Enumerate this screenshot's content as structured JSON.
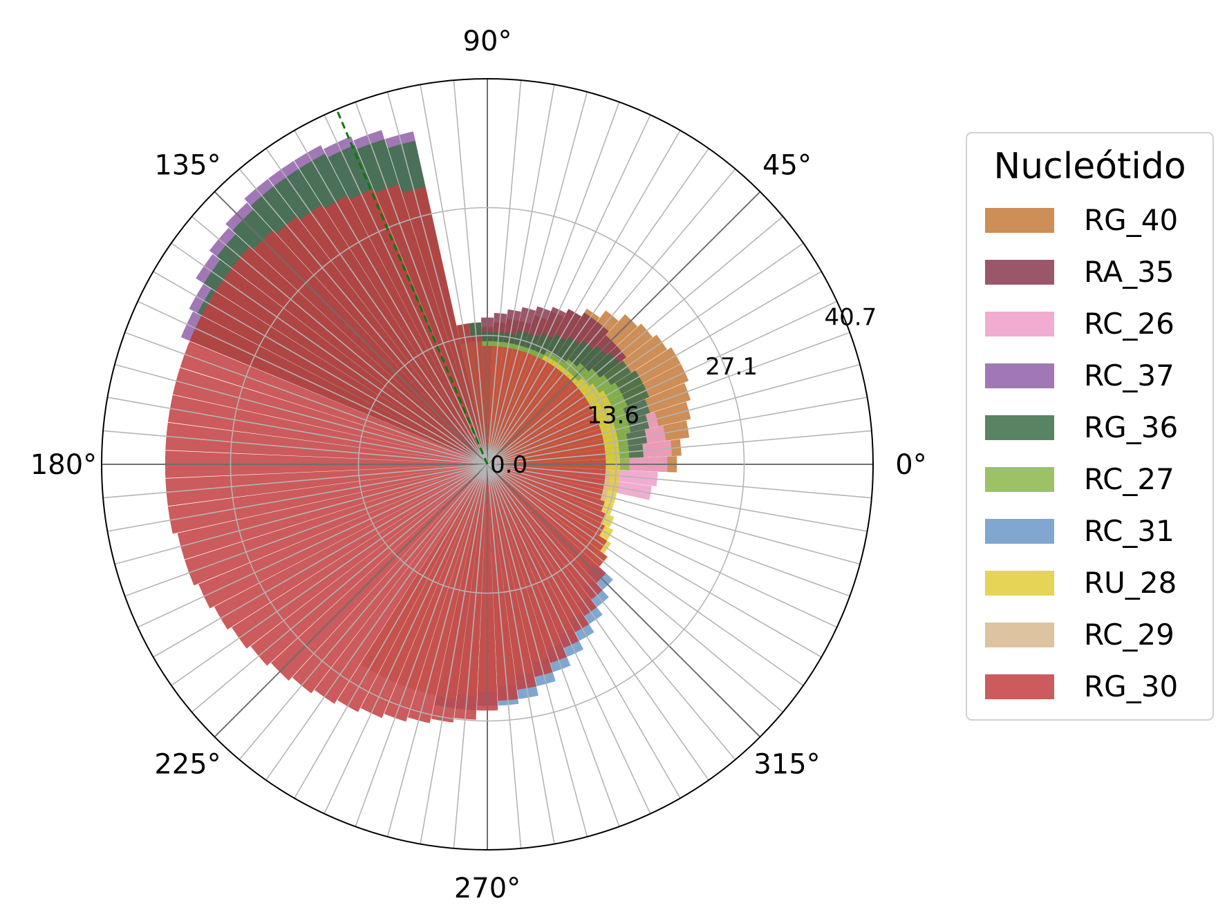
{
  "chart_data": {
    "type": "polar-bar",
    "legend_title": "Nucleótido",
    "legend_placement": "right",
    "angle_ticks": [
      {
        "deg": 0,
        "label": "0°"
      },
      {
        "deg": 45,
        "label": "45°"
      },
      {
        "deg": 90,
        "label": "90°"
      },
      {
        "deg": 135,
        "label": "135°"
      },
      {
        "deg": 180,
        "label": "180°"
      },
      {
        "deg": 225,
        "label": "225°"
      },
      {
        "deg": 270,
        "label": "270°"
      },
      {
        "deg": 315,
        "label": "315°"
      }
    ],
    "radial_ticks": [
      {
        "value": 0.0,
        "label": "0.0"
      },
      {
        "value": 13.6,
        "label": "13.6"
      },
      {
        "value": 27.1,
        "label": "27.1"
      },
      {
        "value": 40.7,
        "label": "40.7"
      }
    ],
    "rlim": [
      0,
      40.7
    ],
    "bin_width_deg": 5,
    "grid": true,
    "reference_line_deg": 113,
    "series": [
      {
        "name": "RG_40",
        "color": "#c47a3a",
        "values": [
          20,
          20.5,
          21.5,
          22,
          22.5,
          23,
          23,
          22.5,
          22,
          21.5,
          20.5,
          19.5,
          18.5,
          17.5,
          16.5,
          15.5,
          15.5,
          15,
          14.5,
          14,
          0,
          0,
          0,
          0,
          0,
          0,
          0,
          0,
          0,
          0,
          0,
          0,
          0,
          0,
          0,
          0,
          0,
          0,
          0,
          0,
          0,
          0,
          0,
          0,
          0,
          0,
          0,
          0,
          0,
          0,
          0,
          0,
          0,
          0,
          0,
          0,
          0,
          0,
          0,
          0,
          0,
          0,
          0,
          0,
          0,
          0,
          0,
          0,
          0,
          0,
          0,
          0
        ]
      },
      {
        "name": "RA_35",
        "color": "#8a3a50",
        "values": [
          0,
          0,
          0,
          0,
          0,
          0,
          0,
          0,
          18.5,
          18.5,
          19,
          19,
          18.5,
          18,
          17.5,
          17,
          16.5,
          16,
          15.5,
          15,
          15,
          0,
          0,
          0,
          0,
          0,
          0,
          0,
          0,
          0,
          0,
          0,
          0,
          0,
          0,
          0,
          0,
          0,
          0,
          0,
          0,
          0,
          0,
          0,
          0,
          0,
          0,
          0,
          0,
          0,
          0,
          0,
          0,
          0,
          0,
          0,
          0,
          0,
          0,
          0,
          0,
          0,
          0,
          0,
          0,
          0,
          0,
          0,
          0,
          0,
          0,
          0
        ]
      },
      {
        "name": "RC_26",
        "color": "#ee9ec9",
        "values": [
          19,
          19.5,
          19,
          18.5,
          18,
          0,
          0,
          0,
          0,
          0,
          0,
          0,
          0,
          0,
          0,
          0,
          0,
          0,
          0,
          0,
          0,
          0,
          0,
          0,
          0,
          0,
          0,
          0,
          0,
          0,
          0,
          0,
          0,
          0,
          0,
          0,
          0,
          0,
          0,
          0,
          0,
          0,
          0,
          0,
          0,
          0,
          0,
          0,
          0,
          0,
          0,
          0,
          0,
          0,
          0,
          0,
          0,
          0,
          0,
          0,
          0,
          0,
          0,
          0,
          0,
          0,
          0,
          0,
          0,
          0,
          17.5,
          18
        ]
      },
      {
        "name": "RC_37",
        "color": "#9060a8",
        "values": [
          0,
          0,
          0,
          0,
          0,
          0,
          0,
          0,
          0,
          0,
          0,
          0,
          0,
          0,
          0,
          0,
          0,
          0,
          0,
          0,
          0,
          36,
          37,
          37.5,
          38,
          38,
          38,
          37.5,
          37,
          36.5,
          35.5,
          35,
          0,
          0,
          0,
          0,
          0,
          0,
          0,
          0,
          0,
          0,
          0,
          0,
          0,
          0,
          0,
          0,
          0,
          0,
          0,
          0,
          0,
          0,
          0,
          0,
          0,
          0,
          0,
          0,
          0,
          0,
          0,
          0,
          0,
          0,
          0,
          0,
          0,
          0,
          0,
          0
        ]
      },
      {
        "name": "RG_36",
        "color": "#3c6e48",
        "values": [
          0,
          16.5,
          17,
          17.5,
          18,
          18.5,
          18.5,
          18,
          17.5,
          17,
          16.5,
          16,
          15.5,
          15,
          14.5,
          14.5,
          14,
          14,
          14,
          15,
          15,
          35,
          36,
          36.5,
          37,
          37,
          37,
          36.5,
          36,
          35.5,
          34.5,
          34,
          0,
          0,
          0,
          0,
          0,
          0,
          0,
          0,
          0,
          0,
          0,
          0,
          0,
          0,
          0,
          0,
          0,
          0,
          0,
          0,
          0,
          0,
          0,
          0,
          0,
          0,
          0,
          0,
          0,
          0,
          0,
          0,
          0,
          0,
          0,
          0,
          0,
          0,
          0,
          0
        ]
      },
      {
        "name": "RC_27",
        "color": "#8ab84a",
        "values": [
          15,
          15,
          15,
          15.5,
          15.5,
          16,
          16,
          15.5,
          15,
          14.5,
          14,
          13.5,
          13.5,
          13,
          13,
          13,
          13,
          13,
          13,
          13,
          13,
          0,
          0,
          0,
          0,
          0,
          0,
          0,
          0,
          0,
          0,
          0,
          0,
          0,
          0,
          0,
          0,
          0,
          0,
          0,
          0,
          0,
          0,
          0,
          0,
          0,
          0,
          0,
          0,
          0,
          0,
          0,
          0,
          0,
          0,
          0,
          0,
          0,
          0,
          0,
          0,
          0,
          0,
          0,
          0,
          0,
          0,
          0,
          0,
          0,
          0,
          0
        ]
      },
      {
        "name": "RC_31",
        "color": "#6a98c8",
        "values": [
          0,
          0,
          0,
          0,
          0,
          0,
          0,
          0,
          0,
          0,
          0,
          0,
          0,
          0,
          0,
          0,
          0,
          0,
          0,
          0,
          0,
          0,
          0,
          0,
          0,
          0,
          0,
          0,
          0,
          0,
          0,
          0,
          0,
          0,
          0,
          0,
          0,
          0,
          0,
          0,
          0,
          0,
          0,
          0,
          0,
          0,
          0,
          0,
          0,
          0,
          0,
          0,
          26,
          26,
          25.5,
          25.5,
          25,
          24,
          23,
          22,
          21,
          20,
          19,
          18,
          0,
          0,
          0,
          0,
          0,
          0,
          0,
          0
        ]
      },
      {
        "name": "RU_28",
        "color": "#e2cc3a",
        "values": [
          14,
          14,
          14,
          14,
          14,
          14.5,
          14.5,
          14,
          13.5,
          13,
          13,
          13,
          13,
          12.5,
          12.5,
          12.5,
          12.5,
          12.5,
          0,
          0,
          0,
          0,
          0,
          0,
          0,
          0,
          0,
          0,
          0,
          0,
          0,
          0,
          0,
          0,
          0,
          0,
          0,
          0,
          0,
          0,
          0,
          0,
          0,
          0,
          0,
          0,
          0,
          0,
          0,
          0,
          0,
          0,
          0,
          0,
          0,
          0,
          0,
          0,
          0,
          0,
          0,
          0,
          0,
          0,
          16,
          15.5,
          15,
          14.5,
          14,
          14,
          14,
          14
        ]
      },
      {
        "name": "RC_29",
        "color": "#d8b890",
        "values": [
          0,
          0,
          0,
          0,
          0,
          0,
          0,
          0,
          0,
          0,
          0,
          0,
          0,
          0,
          0,
          0,
          0,
          0,
          0,
          0,
          0,
          0,
          0,
          0,
          0,
          0,
          0,
          0,
          0,
          0,
          0,
          0,
          0,
          0,
          0,
          0,
          0,
          0,
          0,
          0,
          0,
          0,
          0,
          0,
          0,
          0,
          0,
          0,
          25,
          25,
          25,
          25,
          25,
          24.5,
          24,
          23.5,
          22.5,
          21.5,
          20.5,
          19.5,
          18.5,
          17.5,
          16.5,
          15.5,
          14.5,
          14,
          13.5,
          13.5,
          13,
          13,
          13,
          13
        ]
      },
      {
        "name": "RG_30",
        "color": "#c23e40",
        "values": [
          12.5,
          12.5,
          12.5,
          12.5,
          12.5,
          12.5,
          12.5,
          12.5,
          12.5,
          12.5,
          12.5,
          12.5,
          12.5,
          12.5,
          12.5,
          12.5,
          12.5,
          12.5,
          12.5,
          13.5,
          15,
          30,
          31,
          31.5,
          32,
          32.5,
          33,
          33.5,
          34,
          34,
          34,
          34,
          34,
          34,
          34,
          34,
          34,
          34,
          34,
          33.5,
          33.5,
          33,
          32.5,
          32,
          31.5,
          31,
          30.5,
          30,
          29.5,
          29,
          28.5,
          28,
          27.5,
          27,
          26,
          25,
          24,
          23,
          22,
          21,
          20,
          19,
          18,
          17,
          16,
          15,
          14,
          13.5,
          13,
          12.5,
          12.5,
          12.5
        ]
      }
    ]
  }
}
